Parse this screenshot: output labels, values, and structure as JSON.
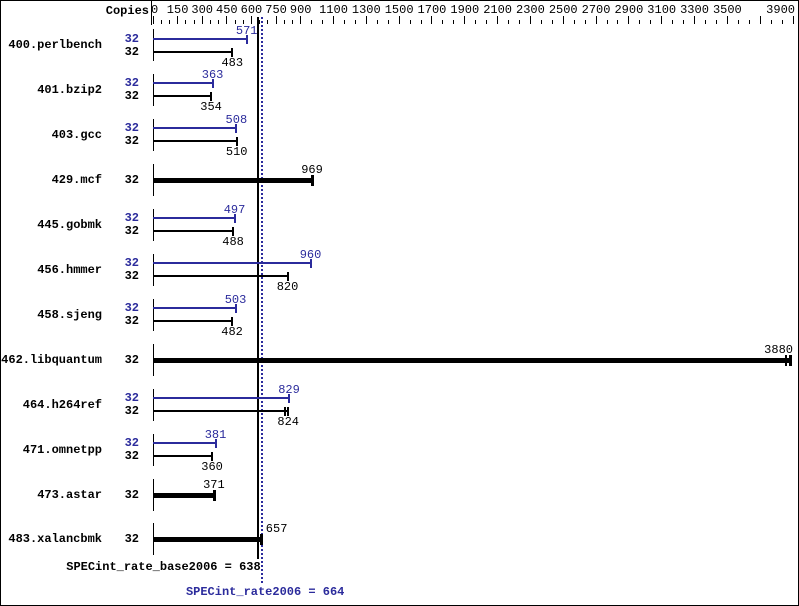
{
  "chart_data": {
    "type": "bar",
    "orientation": "horizontal",
    "copies_header": "Copies",
    "axis": {
      "position": "top",
      "min": 0,
      "max": 3900,
      "labeled_ticks": [
        0,
        150,
        300,
        450,
        600,
        750,
        900,
        1100,
        1300,
        1500,
        1700,
        1900,
        2100,
        2300,
        2500,
        2700,
        2900,
        3100,
        3300,
        3500,
        3900
      ],
      "unlabeled_major_ticks": [
        3700
      ],
      "minor_ticks_between_majors": 2
    },
    "colors": {
      "peak": "#2b2b9c",
      "base": "#000000",
      "background": "#ffffff"
    },
    "legend": {
      "peak_kind_is_blue_thin_bar": true,
      "base_kind_is_black_thin_bar": true,
      "single_kind_is_black_thick_bar": true
    },
    "benchmarks": [
      {
        "name": "400.perlbench",
        "rows": [
          {
            "kind": "peak",
            "copies": "32",
            "value": 571
          },
          {
            "kind": "base",
            "copies": "32",
            "value": 483
          }
        ]
      },
      {
        "name": "401.bzip2",
        "rows": [
          {
            "kind": "peak",
            "copies": "32",
            "value": 363
          },
          {
            "kind": "base",
            "copies": "32",
            "value": 354
          }
        ]
      },
      {
        "name": "403.gcc",
        "rows": [
          {
            "kind": "peak",
            "copies": "32",
            "value": 508
          },
          {
            "kind": "base",
            "copies": "32",
            "value": 510
          }
        ]
      },
      {
        "name": "429.mcf",
        "rows": [
          {
            "kind": "single",
            "copies": "32",
            "value": 969
          }
        ]
      },
      {
        "name": "445.gobmk",
        "rows": [
          {
            "kind": "peak",
            "copies": "32",
            "value": 497
          },
          {
            "kind": "base",
            "copies": "32",
            "value": 488
          }
        ]
      },
      {
        "name": "456.hmmer",
        "rows": [
          {
            "kind": "peak",
            "copies": "32",
            "value": 960
          },
          {
            "kind": "base",
            "copies": "32",
            "value": 820
          }
        ]
      },
      {
        "name": "458.sjeng",
        "rows": [
          {
            "kind": "peak",
            "copies": "32",
            "value": 503
          },
          {
            "kind": "base",
            "copies": "32",
            "value": 482
          }
        ]
      },
      {
        "name": "462.libquantum",
        "rows": [
          {
            "kind": "single",
            "copies": "32",
            "value": 3880,
            "extra_run_tick": true
          }
        ]
      },
      {
        "name": "464.h264ref",
        "rows": [
          {
            "kind": "peak",
            "copies": "32",
            "value": 829
          },
          {
            "kind": "base",
            "copies": "32",
            "value": 824,
            "extra_run_tick": true
          }
        ]
      },
      {
        "name": "471.omnetpp",
        "rows": [
          {
            "kind": "peak",
            "copies": "32",
            "value": 381
          },
          {
            "kind": "base",
            "copies": "32",
            "value": 360
          }
        ]
      },
      {
        "name": "473.astar",
        "rows": [
          {
            "kind": "single",
            "copies": "32",
            "value": 371
          }
        ]
      },
      {
        "name": "483.xalancbmk",
        "rows": [
          {
            "kind": "single",
            "copies": "32",
            "value": 657,
            "label_side": "right"
          }
        ]
      }
    ],
    "reference_lines": {
      "base": {
        "label": "SPECint_rate_base2006 = 638",
        "value": 638,
        "style": "solid",
        "color": "#000000"
      },
      "peak": {
        "label": "SPECint_rate2006 = 664",
        "value": 664,
        "style": "dotted",
        "color": "#2b2b9c"
      }
    }
  }
}
